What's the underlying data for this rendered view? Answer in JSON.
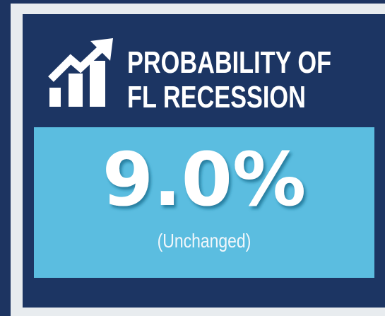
{
  "header": {
    "title_lines": [
      "PROBABILITY OF",
      "FL RECESSION"
    ]
  },
  "value": "9.0%",
  "note": "(Unchanged)"
}
